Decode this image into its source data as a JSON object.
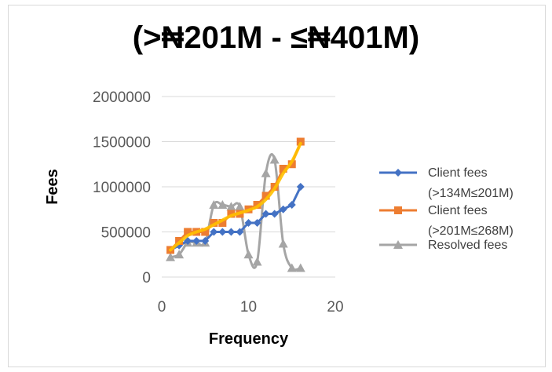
{
  "chart_data": {
    "type": "line",
    "title": "(>₦201M - ≤₦401M)",
    "xlabel": "Frequency",
    "ylabel": "Fees",
    "xlim": [
      0,
      20
    ],
    "ylim": [
      0,
      2000000
    ],
    "x_ticks": [
      "0",
      "10",
      "20"
    ],
    "y_ticks": [
      "0",
      "500000",
      "1000000",
      "1500000",
      "2000000"
    ],
    "grid": "horizontal",
    "legend_position": "right",
    "series": [
      {
        "name": "Client fees (>134M≤201M)",
        "legend_lines": [
          "Client fees",
          "(>134M≤201M)"
        ],
        "color": "#4472C4",
        "marker": "diamond",
        "smooth": false,
        "x": [
          1,
          2,
          3,
          4,
          5,
          6,
          7,
          8,
          9,
          10,
          11,
          12,
          13,
          14,
          15,
          16
        ],
        "y": [
          300000,
          350000,
          400000,
          400000,
          400000,
          500000,
          500000,
          500000,
          500000,
          600000,
          600000,
          700000,
          700000,
          750000,
          800000,
          1000000
        ]
      },
      {
        "name": "Client fees (>201M≤268M)",
        "legend_lines": [
          "Client fees",
          "(>201M≤268M)"
        ],
        "color": "#ED7D31",
        "marker": "square",
        "smooth": false,
        "x": [
          1,
          2,
          3,
          4,
          5,
          6,
          7,
          8,
          9,
          10,
          11,
          12,
          13,
          14,
          15,
          16
        ],
        "y": [
          300000,
          400000,
          500000,
          500000,
          500000,
          600000,
          600000,
          700000,
          700000,
          750000,
          800000,
          900000,
          1000000,
          1200000,
          1250000,
          1500000
        ]
      },
      {
        "name": "Resolved fees",
        "legend_lines": [
          "Resolved fees"
        ],
        "color": "#A5A5A5",
        "marker": "triangle",
        "smooth": true,
        "x": [
          1,
          2,
          3,
          4,
          5,
          6,
          7,
          8,
          9,
          10,
          11,
          12,
          13,
          14,
          15,
          16
        ],
        "y": [
          220000,
          250000,
          380000,
          380000,
          380000,
          800000,
          800000,
          780000,
          780000,
          250000,
          170000,
          1150000,
          1300000,
          370000,
          100000,
          100000
        ]
      }
    ],
    "trendline": {
      "color": "#FFC000",
      "x": [
        1,
        2,
        3,
        4,
        5,
        6,
        7,
        8,
        9,
        10,
        11,
        12,
        13,
        14,
        15,
        16
      ],
      "y": [
        300000,
        380000,
        460000,
        500000,
        530000,
        580000,
        630000,
        680000,
        710000,
        740000,
        780000,
        860000,
        980000,
        1150000,
        1280000,
        1480000
      ]
    }
  }
}
